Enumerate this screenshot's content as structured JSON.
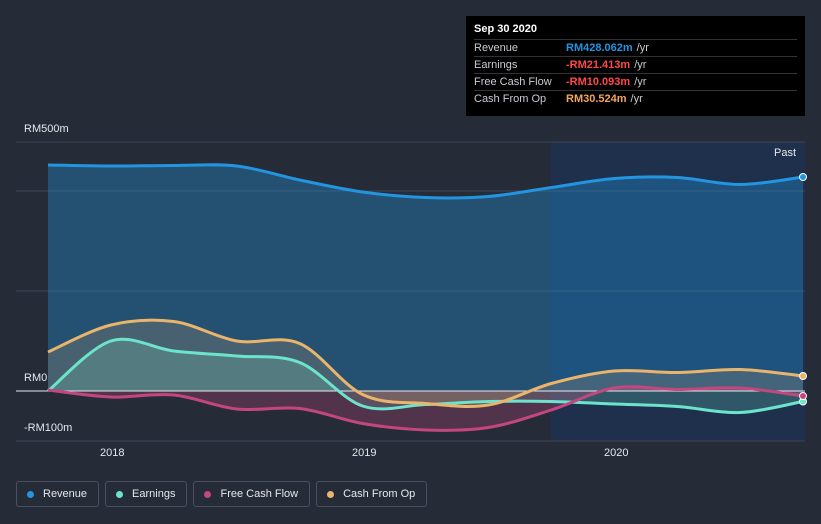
{
  "tooltip": {
    "date": "Sep 30 2020",
    "rows": [
      {
        "label": "Revenue",
        "value": "RM428.062m",
        "unit": "/yr",
        "color": "#2394df"
      },
      {
        "label": "Earnings",
        "value": "-RM21.413m",
        "unit": "/yr",
        "color": "#ff4848"
      },
      {
        "label": "Free Cash Flow",
        "value": "-RM10.093m",
        "unit": "/yr",
        "color": "#ff4848"
      },
      {
        "label": "Cash From Op",
        "value": "RM30.524m",
        "unit": "/yr",
        "color": "#f2a65a"
      }
    ]
  },
  "past_label": "Past",
  "chart_data": {
    "type": "area",
    "title": "",
    "xlabel": "",
    "ylabel": "",
    "ylim": [
      -100,
      500
    ],
    "y_tick_labels": [
      "RM500m",
      "RM0",
      "-RM100m"
    ],
    "x_tick_labels": [
      "2018",
      "2019",
      "2020"
    ],
    "x": [
      2017.75,
      2018.0,
      2018.25,
      2018.5,
      2018.75,
      2019.0,
      2019.25,
      2019.5,
      2019.75,
      2020.0,
      2020.25,
      2020.5,
      2020.75
    ],
    "series": [
      {
        "name": "Revenue",
        "color": "#2394df",
        "values": [
          452,
          450,
          451,
          450,
          422,
          398,
          387,
          389,
          407,
          425,
          427,
          413,
          428
        ]
      },
      {
        "name": "Earnings",
        "color": "#6ce4cc",
        "values": [
          0,
          100,
          80,
          70,
          57,
          -30,
          -27,
          -21,
          -21,
          -26,
          -31,
          -43,
          -21
        ]
      },
      {
        "name": "Free Cash Flow",
        "color": "#c2477e",
        "values": [
          2,
          -12,
          -8,
          -36,
          -35,
          -65,
          -78,
          -73,
          -38,
          6,
          3,
          6,
          -10
        ]
      },
      {
        "name": "Cash From Op",
        "color": "#e9b46c",
        "values": [
          78,
          132,
          139,
          100,
          95,
          -7,
          -25,
          -28,
          15,
          40,
          37,
          43,
          30
        ]
      }
    ]
  },
  "legend": [
    {
      "label": "Revenue",
      "color": "#2394df"
    },
    {
      "label": "Earnings",
      "color": "#6ce4cc"
    },
    {
      "label": "Free Cash Flow",
      "color": "#c2477e"
    },
    {
      "label": "Cash From Op",
      "color": "#e9b46c"
    }
  ]
}
